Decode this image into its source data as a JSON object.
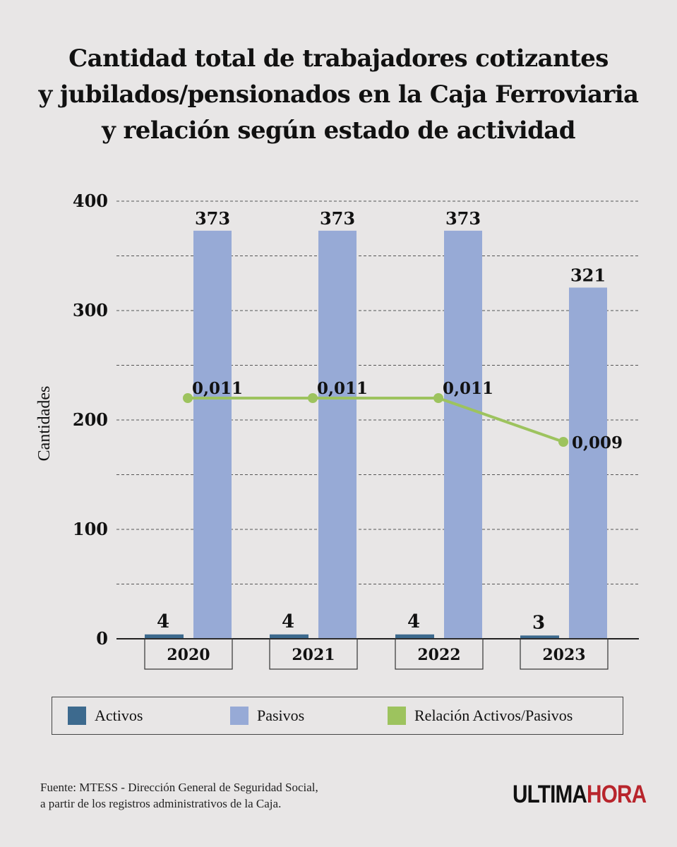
{
  "title_lines": [
    "Cantidad total de trabajadores cotizantes",
    "y jubilados/pensionados en la Caja Ferroviaria",
    "y relación según estado de actividad"
  ],
  "chart_data": {
    "type": "bar",
    "categories": [
      "2020",
      "2021",
      "2022",
      "2023"
    ],
    "series": [
      {
        "name": "Activos",
        "type": "bar",
        "values": [
          4,
          4,
          4,
          3
        ],
        "labels": [
          "4",
          "4",
          "4",
          "3"
        ],
        "color": "#3d6a8e"
      },
      {
        "name": "Pasivos",
        "type": "bar",
        "values": [
          373,
          373,
          373,
          321
        ],
        "labels": [
          "373",
          "373",
          "373",
          "321"
        ],
        "color": "#97aad6"
      },
      {
        "name": "Relación Activos/Pasivos",
        "type": "line",
        "values": [
          0.011,
          0.011,
          0.011,
          0.009
        ],
        "labels": [
          "0,011",
          "0,011",
          "0,011",
          "0,009"
        ],
        "color": "#9dc35e"
      }
    ],
    "ylabel": "Cantidades",
    "ylim": [
      0,
      400
    ],
    "yticks": [
      "0",
      "100",
      "200",
      "300",
      "400"
    ],
    "grid": true,
    "legend_position": "bottom"
  },
  "legend": [
    "Activos",
    "Pasivos",
    "Relación Activos/Pasivos"
  ],
  "source_lines": [
    "Fuente: MTESS - Dirección General de Seguridad Social,",
    "a partir de los registros administrativos de la Caja."
  ],
  "logo": {
    "part1": "ULTIMA",
    "part2": "HORA"
  }
}
